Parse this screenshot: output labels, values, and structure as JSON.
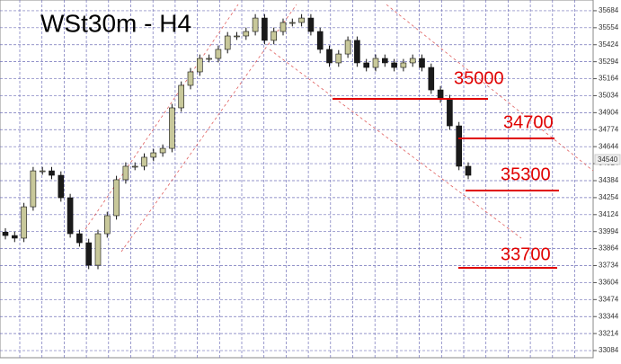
{
  "chart_data": {
    "type": "candlestick",
    "title": "WSt30m - H4",
    "ylim": [
      33050,
      35766
    ],
    "yticks": [
      33084,
      33214,
      33344,
      33474,
      33604,
      33734,
      33864,
      33994,
      34124,
      34254,
      34384,
      34514,
      34644,
      34774,
      34904,
      35034,
      35164,
      35294,
      35424,
      35554,
      35684
    ],
    "grid": true,
    "up_color": "#c8c89a",
    "down_color": "#1a1a1a",
    "line_color": "#e00000",
    "current_price": "34540",
    "annotations": [
      "35000",
      "34700",
      "35300",
      "33700"
    ],
    "open": [
      33990,
      33964,
      33944,
      34184,
      34459,
      34459,
      34425,
      34253,
      33978,
      33909,
      33737,
      33978,
      34116,
      34391,
      34494,
      34494,
      34563,
      34597,
      34631,
      34941,
      35113,
      35216,
      35319,
      35319,
      35388,
      35491,
      35491,
      35525,
      35628,
      35457,
      35525,
      35594,
      35594,
      35628,
      35525,
      35388,
      35285,
      35353,
      35457,
      35285,
      35250,
      35319,
      35285,
      35250,
      35285,
      35319,
      35250,
      35078,
      35010,
      34803,
      34494
    ],
    "high": [
      34020,
      33994,
      34214,
      34489,
      34489,
      34489,
      34455,
      34283,
      34008,
      33939,
      34008,
      34146,
      34421,
      34524,
      34524,
      34593,
      34627,
      34661,
      34971,
      35143,
      35246,
      35349,
      35349,
      35418,
      35521,
      35521,
      35555,
      35658,
      35658,
      35555,
      35624,
      35624,
      35658,
      35658,
      35555,
      35418,
      35383,
      35487,
      35487,
      35315,
      35349,
      35349,
      35315,
      35315,
      35349,
      35349,
      35280,
      35108,
      35040,
      34833,
      34524
    ],
    "low": [
      33934,
      33914,
      33914,
      34154,
      34429,
      34395,
      34223,
      33948,
      33879,
      33707,
      33707,
      33948,
      34086,
      34361,
      34464,
      34464,
      34533,
      34567,
      34601,
      34911,
      35083,
      35186,
      35289,
      35289,
      35358,
      35461,
      35461,
      35495,
      35427,
      35427,
      35495,
      35564,
      35564,
      35495,
      35358,
      35255,
      35255,
      35323,
      35255,
      35220,
      35220,
      35255,
      35220,
      35220,
      35255,
      35220,
      35048,
      34980,
      34773,
      34464,
      34395
    ],
    "close": [
      33964,
      33944,
      34184,
      34459,
      34459,
      34425,
      34253,
      33978,
      33909,
      33737,
      33978,
      34116,
      34391,
      34494,
      34494,
      34563,
      34597,
      34631,
      34941,
      35113,
      35216,
      35319,
      35319,
      35388,
      35491,
      35491,
      35525,
      35628,
      35457,
      35525,
      35594,
      35594,
      35628,
      35525,
      35388,
      35285,
      35353,
      35457,
      35285,
      35250,
      35319,
      35285,
      35250,
      35285,
      35319,
      35250,
      35078,
      35010,
      34803,
      34494,
      34425
    ]
  }
}
